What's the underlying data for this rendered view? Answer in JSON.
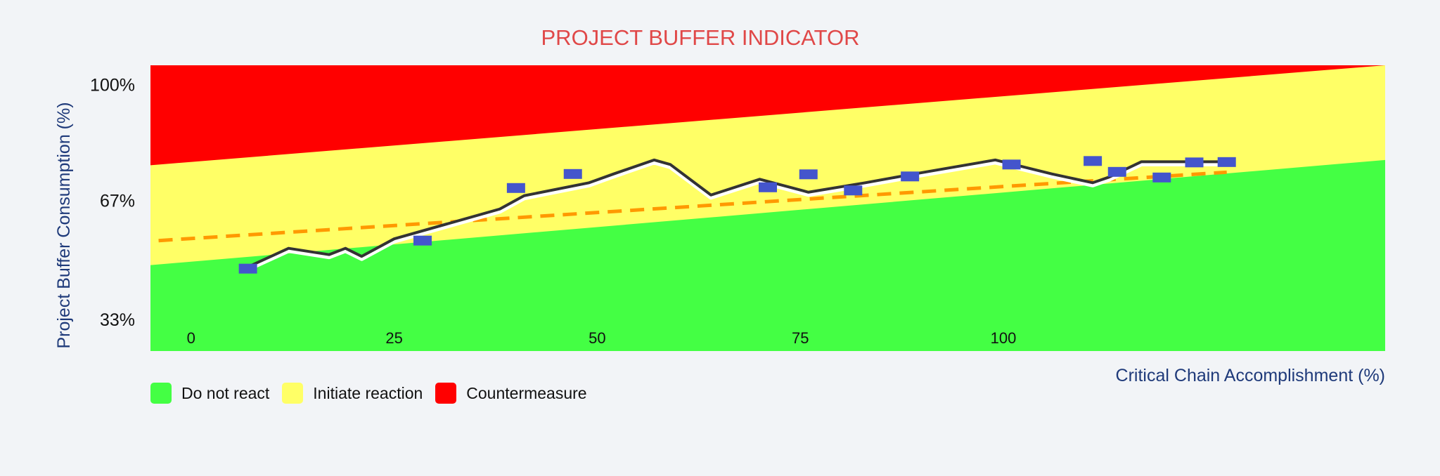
{
  "chart_data": {
    "type": "line",
    "title": "PROJECT BUFFER INDICATOR",
    "xlabel": "Critical Chain Accomplishment (%)",
    "ylabel": "Project Buffer Consumption (%)",
    "xlim": [
      -5,
      147
    ],
    "ylim": [
      24,
      105.5
    ],
    "x_ticks": [
      "0",
      "25",
      "50",
      "75",
      "100"
    ],
    "x_tick_values": [
      0,
      25,
      50,
      75,
      100
    ],
    "y_ticks": [
      "33%",
      "67%",
      "100%"
    ],
    "y_tick_values": [
      33,
      67,
      100
    ],
    "zones": [
      {
        "name": "Do not react",
        "color": "#44ff44",
        "boundary_start": 48.5,
        "boundary_end": 78.5
      },
      {
        "name": "Initiate reaction",
        "color": "#ffff66",
        "boundary_start": 77,
        "boundary_end": 105.5
      },
      {
        "name": "Countermeasure",
        "color": "#ff0000"
      }
    ],
    "series": [
      {
        "style": "solid",
        "color": "#333333",
        "x": [
          7,
          12,
          17,
          19,
          21,
          25,
          38,
          41,
          49,
          52,
          57,
          59,
          64,
          70,
          76,
          83,
          89,
          94,
          99,
          106,
          111,
          113,
          117,
          122,
          127
        ],
        "y": [
          48,
          53.3,
          51.5,
          53.3,
          51,
          56,
          64.5,
          68.3,
          72,
          74.5,
          78.5,
          77.2,
          68.5,
          73,
          69.3,
          72,
          74.5,
          76.5,
          78.5,
          74.5,
          72,
          73.6,
          78,
          78,
          78
        ]
      },
      {
        "style": "dashed",
        "color": "#ff9900",
        "x": [
          -4,
          127.5
        ],
        "y": [
          55.5,
          75
        ]
      }
    ],
    "markers": {
      "color": "#4455cc",
      "x": [
        7,
        28.5,
        40,
        47,
        71,
        76,
        81.5,
        88.5,
        101,
        111,
        114,
        119.5,
        123.5,
        127.5
      ],
      "y": [
        47.5,
        55.5,
        70.5,
        74.5,
        70.7,
        74.4,
        69.8,
        73.8,
        77.2,
        78.2,
        75.1,
        73.5,
        77.8,
        77.9
      ]
    }
  },
  "legend": {
    "items": [
      {
        "label": "Do not react",
        "color": "#44ff44"
      },
      {
        "label": "Initiate reaction",
        "color": "#ffff66"
      },
      {
        "label": "Countermeasure",
        "color": "#ff0000"
      }
    ]
  }
}
